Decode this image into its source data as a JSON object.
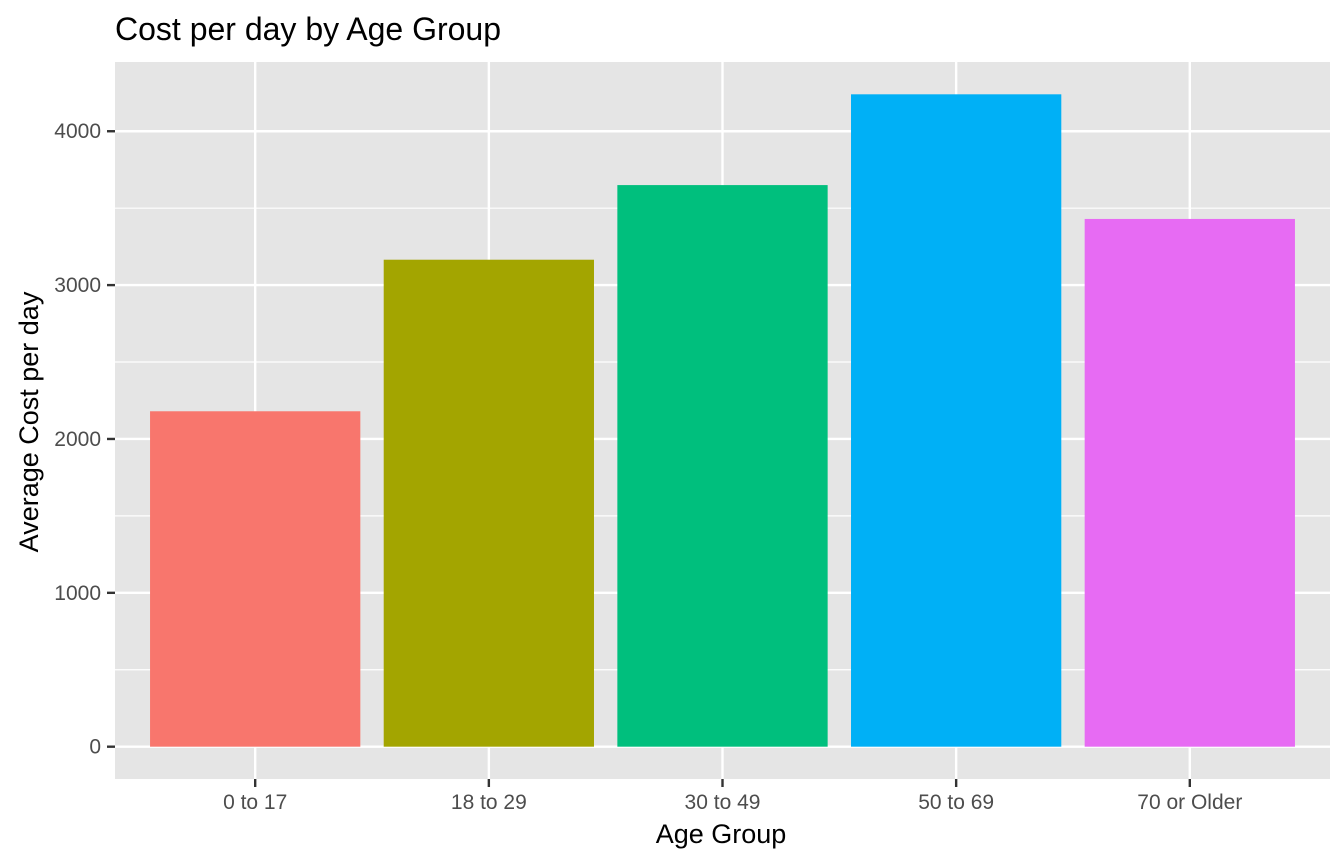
{
  "chart_data": {
    "type": "bar",
    "title": "Cost per day by Age Group",
    "xlabel": "Age Group",
    "ylabel": "Average Cost per day",
    "categories": [
      "0 to 17",
      "18 to 29",
      "30 to 49",
      "50 to 69",
      "70 or Older"
    ],
    "values": [
      2180,
      3165,
      3650,
      4240,
      3430
    ],
    "colors": [
      "#F8766D",
      "#A3A500",
      "#00BF7D",
      "#00B0F6",
      "#E76BF3"
    ],
    "ylim": [
      -210,
      4450
    ],
    "yticks": [
      0,
      1000,
      2000,
      3000,
      4000
    ],
    "ytick_labels": [
      "0",
      "1000",
      "2000",
      "3000",
      "4000"
    ],
    "grid": true,
    "legend": "none",
    "panel_background": "#E5E5E5",
    "grid_color": "#FFFFFF"
  }
}
